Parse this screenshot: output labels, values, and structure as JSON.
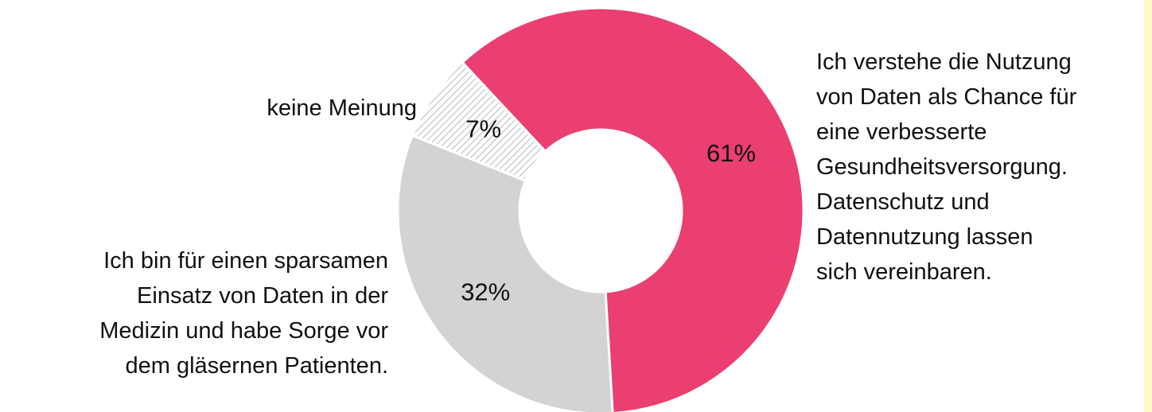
{
  "chart_data": {
    "type": "donut",
    "categories": [
      "Ich verstehe die Nutzung\nvon Daten als Chance für\neine verbesserte\nGesundheitsversorgung.\nDatenschutz und\nDatennutzung lassen\nsich vereinbaren.",
      "Ich bin für einen sparsamen\nEinsatz von Daten in der\nMedizin und habe Sorge vor\ndem gläsernen Patienten.",
      "keine Meinung"
    ],
    "values": [
      61,
      32,
      7
    ],
    "value_labels": [
      "61%",
      "32%",
      "7%"
    ],
    "colors": [
      "#ea3f70",
      "#d3d3d3",
      "#b8b8b8"
    ],
    "hatched": [
      false,
      false,
      true
    ]
  }
}
